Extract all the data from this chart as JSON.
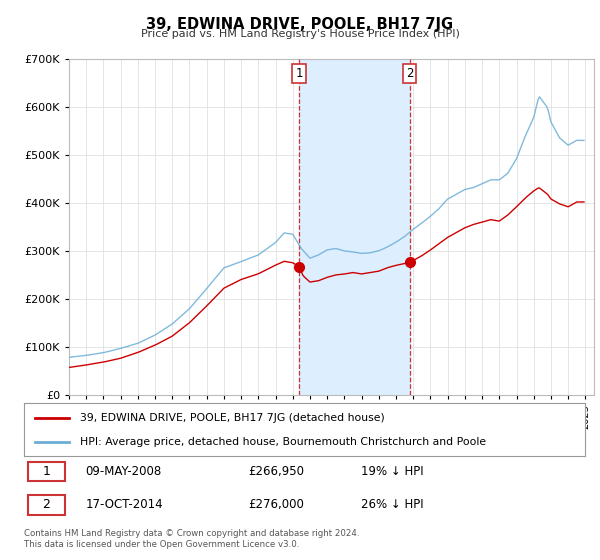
{
  "title": "39, EDWINA DRIVE, POOLE, BH17 7JG",
  "subtitle": "Price paid vs. HM Land Registry's House Price Index (HPI)",
  "ylim": [
    0,
    700000
  ],
  "xlim_start": 1995.0,
  "xlim_end": 2025.5,
  "transaction1_date": 2008.37,
  "transaction1_price": 266950,
  "transaction1_label": "1",
  "transaction1_text": "09-MAY-2008",
  "transaction1_amount": "£266,950",
  "transaction1_pct": "19% ↓ HPI",
  "transaction2_date": 2014.79,
  "transaction2_price": 276000,
  "transaction2_label": "2",
  "transaction2_text": "17-OCT-2014",
  "transaction2_amount": "£276,000",
  "transaction2_pct": "26% ↓ HPI",
  "hpi_color": "#6baed6",
  "sold_color": "#cc0000",
  "highlight_color": "#ddeeff",
  "legend_label_sold": "39, EDWINA DRIVE, POOLE, BH17 7JG (detached house)",
  "legend_label_hpi": "HPI: Average price, detached house, Bournemouth Christchurch and Poole",
  "footer": "Contains HM Land Registry data © Crown copyright and database right 2024.\nThis data is licensed under the Open Government Licence v3.0."
}
